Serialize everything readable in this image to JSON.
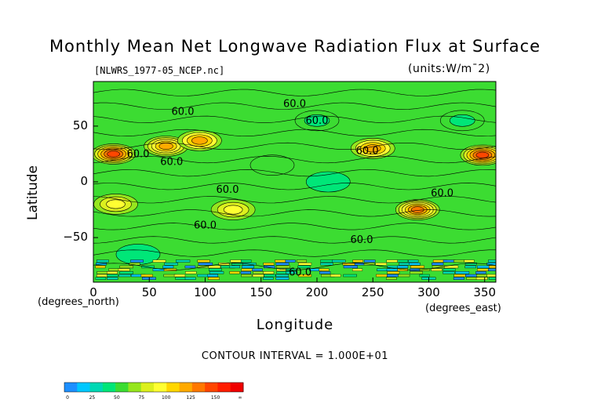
{
  "chart_data": {
    "type": "heatmap",
    "title": "Monthly Mean Net Longwave Radiation Flux at Surface",
    "subtitle": "[NLWRS_1977-05_NCEP.nc]",
    "units_label": "(units:W/m¯2)",
    "xlabel": "Longitude",
    "ylabel": "Latitude",
    "x_unit_note": "(degrees_east)",
    "y_unit_note": "(degrees_north)",
    "footer": "CONTOUR INTERVAL = 1.000E+01",
    "xlim": [
      0,
      360
    ],
    "ylim": [
      -90,
      90
    ],
    "x_ticks": [
      "0",
      "50",
      "100",
      "150",
      "200",
      "250",
      "300",
      "350"
    ],
    "x_tick_values": [
      0,
      50,
      100,
      150,
      200,
      250,
      300,
      350
    ],
    "y_ticks": [
      "50",
      "0",
      "−50"
    ],
    "y_tick_values": [
      50,
      0,
      -50
    ],
    "contour_labels": [
      {
        "text": "60.0",
        "lon": 80,
        "lat": 60
      },
      {
        "text": "60.0",
        "lon": 180,
        "lat": 67
      },
      {
        "text": "60.0",
        "lon": 200,
        "lat": 52
      },
      {
        "text": "60.0",
        "lon": 70,
        "lat": 15
      },
      {
        "text": "60.0",
        "lon": 40,
        "lat": 22
      },
      {
        "text": "60.0",
        "lon": 245,
        "lat": 25
      },
      {
        "text": "60.0",
        "lon": 120,
        "lat": -10
      },
      {
        "text": "60.0",
        "lon": 100,
        "lat": -42
      },
      {
        "text": "60.0",
        "lon": 240,
        "lat": -55
      },
      {
        "text": "60.0",
        "lon": 312,
        "lat": -13
      },
      {
        "text": "60.0",
        "lon": 185,
        "lat": -84
      }
    ],
    "colorbar": {
      "labels": [
        "0",
        "25",
        "50",
        "75",
        "100",
        "125",
        "150",
        "∞"
      ],
      "colors": [
        "#1e90ff",
        "#00c8ff",
        "#00d8b4",
        "#00e678",
        "#3cdc32",
        "#96e61e",
        "#dcf01e",
        "#ffff32",
        "#ffd700",
        "#ffaa00",
        "#ff7800",
        "#ff4600",
        "#ff1e00",
        "#f00000"
      ]
    },
    "background_color": "#3cdc32",
    "anomalies": [
      {
        "lon": 18,
        "lat": 25,
        "value": 140
      },
      {
        "lon": 65,
        "lat": 32,
        "value": 120
      },
      {
        "lon": 95,
        "lat": 37,
        "value": 115
      },
      {
        "lon": 348,
        "lat": 24,
        "value": 140
      },
      {
        "lon": 250,
        "lat": 30,
        "value": 115
      },
      {
        "lon": 290,
        "lat": -25,
        "value": 135
      },
      {
        "lon": 125,
        "lat": -25,
        "value": 95
      },
      {
        "lon": 20,
        "lat": -20,
        "value": 95
      },
      {
        "lon": 200,
        "lat": 55,
        "value": 40
      },
      {
        "lon": 210,
        "lat": 0,
        "value": 45
      },
      {
        "lon": 40,
        "lat": -65,
        "value": 45
      },
      {
        "lon": 330,
        "lat": 55,
        "value": 40
      },
      {
        "lon": 160,
        "lat": 15,
        "value": 50
      }
    ]
  }
}
